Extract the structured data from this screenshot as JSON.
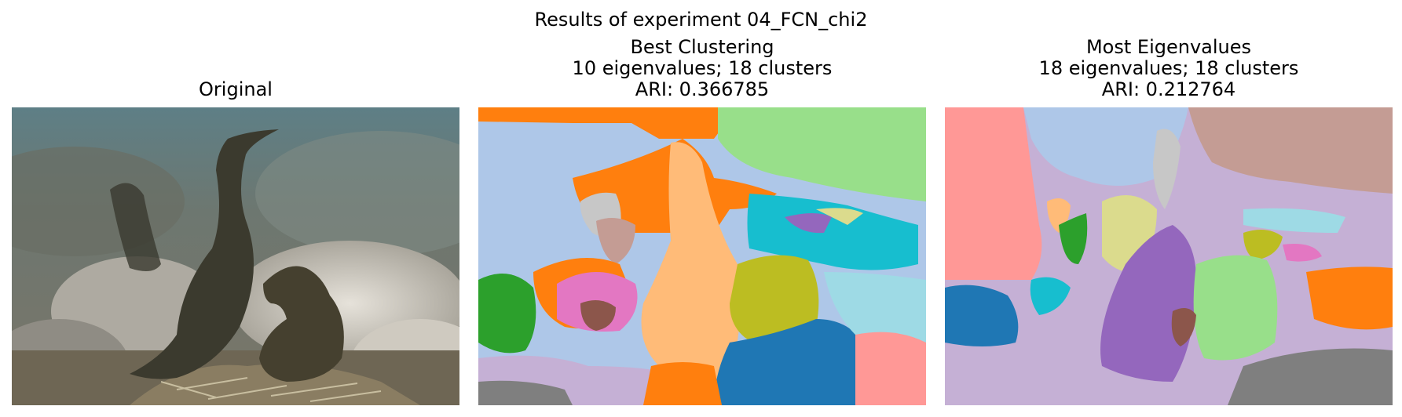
{
  "figure": {
    "suptitle": "Results of experiment 04_FCN_chi2"
  },
  "panels": [
    {
      "id": "original",
      "title_lines": [
        "Original"
      ],
      "content": "photograph"
    },
    {
      "id": "best-clustering",
      "title_lines": [
        "Best Clustering",
        "10 eigenvalues; 18 clusters",
        "ARI: 0.366785"
      ],
      "eigenvalues": 10,
      "clusters": 18,
      "ari": 0.366785,
      "content": "segmentation"
    },
    {
      "id": "most-eigenvalues",
      "title_lines": [
        "Most Eigenvalues",
        "18 eigenvalues; 18 clusters",
        "ARI: 0.212764"
      ],
      "eigenvalues": 18,
      "clusters": 18,
      "ari": 0.212764,
      "content": "segmentation"
    }
  ],
  "palette": [
    "#aec7e8",
    "#ff7f0e",
    "#98df8a",
    "#c5b0d5",
    "#ff9896",
    "#1f77b4",
    "#17becf",
    "#bcbd22",
    "#9467bd",
    "#e377c2",
    "#8c564b",
    "#2ca02c",
    "#ffbb78",
    "#c7c7c7",
    "#7f7f7f",
    "#9edae5",
    "#dbdb8d",
    "#c49c94"
  ]
}
